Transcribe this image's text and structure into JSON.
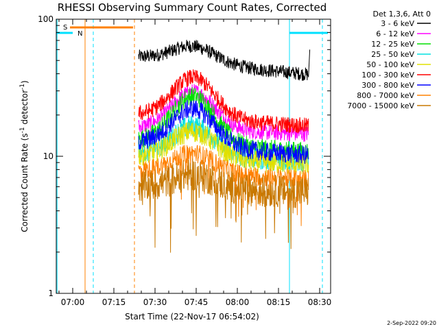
{
  "chart_data": {
    "type": "line",
    "title": "RHESSI Observing Summary Count Rates, Corrected",
    "xlabel": "Start Time (22-Nov-17 06:54:02)",
    "ylabel": "Corrected Count Rate (s⁻¹ detector⁻¹)",
    "ylabel_parts": [
      "Corrected Count Rate (s",
      "-1",
      " detector",
      "-1",
      ")"
    ],
    "yscale": "log",
    "ylim": [
      1,
      100
    ],
    "xlim_minutes": [
      0,
      100
    ],
    "x_ticks": [
      "07:00",
      "07:15",
      "07:30",
      "07:45",
      "08:00",
      "08:15",
      "08:30"
    ],
    "x_tick_minutes": [
      6,
      21,
      36,
      51,
      66,
      81,
      96
    ],
    "y_ticks": [
      "1",
      "10",
      "100"
    ],
    "y_tick_values": [
      1,
      10,
      100
    ],
    "legend_header": "Det 1,3,6, Att 0",
    "legend_placement": "right",
    "series": [
      {
        "name": "3 - 6 keV",
        "color": "#000000",
        "base": 53,
        "bump": 0.12,
        "slope": -0.32,
        "noise": 0.05,
        "minpeak": 0
      },
      {
        "name": "6 - 12 keV",
        "color": "#ff00ff",
        "base": 16,
        "bump": 0.28,
        "slope": -0.1,
        "noise": 0.06,
        "minpeak": 0
      },
      {
        "name": "12 - 25 keV",
        "color": "#00e000",
        "base": 13,
        "bump": 0.35,
        "slope": -0.2,
        "noise": 0.07,
        "minpeak": 0
      },
      {
        "name": "25 - 50 keV",
        "color": "#00e0e0",
        "base": 10.5,
        "bump": 0.22,
        "slope": -0.15,
        "noise": 0.08,
        "minpeak": 0
      },
      {
        "name": "50 - 100 keV",
        "color": "#e0e000",
        "base": 10,
        "bump": 0.2,
        "slope": -0.15,
        "noise": 0.08,
        "minpeak": 0
      },
      {
        "name": "100 - 300 keV",
        "color": "#ff0000",
        "base": 20,
        "bump": 0.3,
        "slope": -0.2,
        "noise": 0.06,
        "minpeak": 0
      },
      {
        "name": "300 - 800 keV",
        "color": "#0000ff",
        "base": 12.5,
        "bump": 0.28,
        "slope": -0.22,
        "noise": 0.07,
        "minpeak": 0
      },
      {
        "name": "800 - 7000 keV",
        "color": "#ff8000",
        "base": 7.8,
        "bump": 0.15,
        "slope": -0.15,
        "noise": 0.07,
        "minpeak": 0.35
      },
      {
        "name": "7000 - 15000 keV",
        "color": "#c87800",
        "base": 6.0,
        "bump": 0.1,
        "slope": -0.1,
        "noise": 0.12,
        "minpeak": 0.45
      }
    ],
    "data_range_minutes": [
      30,
      92
    ],
    "flags": [
      {
        "label": "S",
        "color": "#ff8000",
        "start_minute": 5,
        "end_minute": 28
      },
      {
        "label": "N",
        "color": "#00e0ff",
        "start_minute": 0,
        "end_minute": 6
      },
      {
        "label": "",
        "color": "#00e0ff",
        "start_minute": 85,
        "end_minute": 99
      }
    ],
    "event_lines": [
      {
        "minute": 10.5,
        "color": "#ff8000",
        "style": "solid"
      },
      {
        "minute": 13.5,
        "color": "#00e0ff",
        "style": "dashed"
      },
      {
        "minute": 28.5,
        "color": "#ff8000",
        "style": "dashed"
      },
      {
        "minute": 85.0,
        "color": "#00e0ff",
        "style": "solid"
      },
      {
        "minute": 97.0,
        "color": "#00e0ff",
        "style": "dashed"
      },
      {
        "minute": 0.3,
        "color": "#00e0ff",
        "style": "solid"
      }
    ],
    "timestamp": "2-Sep-2022 09:20"
  }
}
